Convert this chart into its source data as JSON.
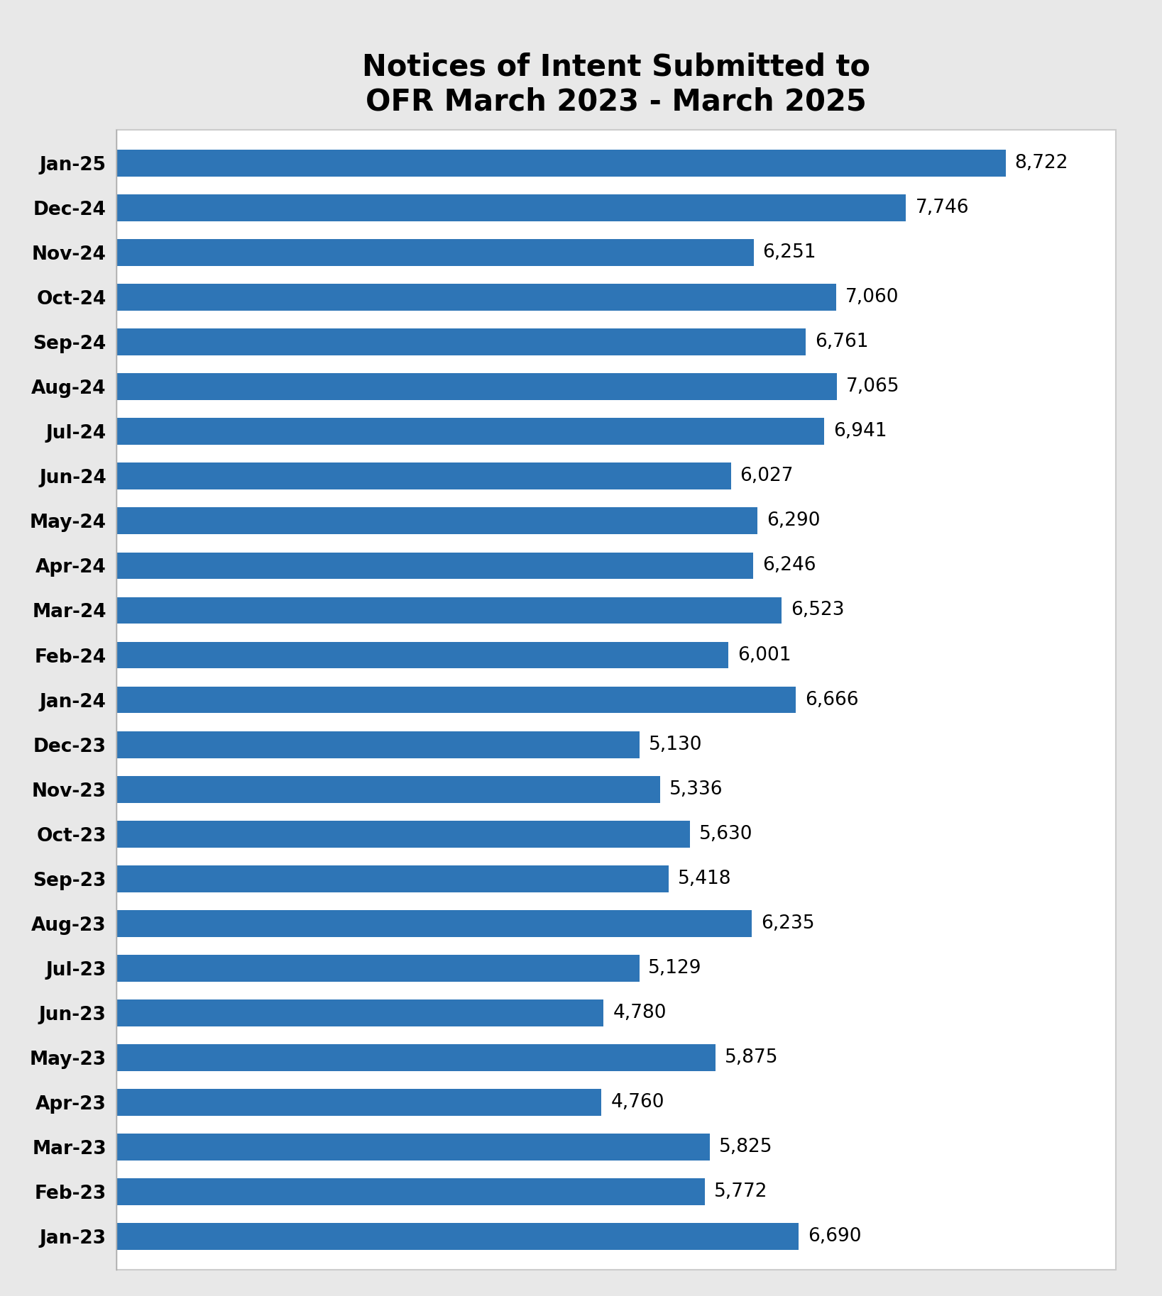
{
  "title": "Notices of Intent Submitted to\nOFR March 2023 - March 2025",
  "categories": [
    "Jan-25",
    "Dec-24",
    "Nov-24",
    "Oct-24",
    "Sep-24",
    "Aug-24",
    "Jul-24",
    "Jun-24",
    "May-24",
    "Apr-24",
    "Mar-24",
    "Feb-24",
    "Jan-24",
    "Dec-23",
    "Nov-23",
    "Oct-23",
    "Sep-23",
    "Aug-23",
    "Jul-23",
    "Jun-23",
    "May-23",
    "Apr-23",
    "Mar-23",
    "Feb-23",
    "Jan-23"
  ],
  "values": [
    8722,
    7746,
    6251,
    7060,
    6761,
    7065,
    6941,
    6027,
    6290,
    6246,
    6523,
    6001,
    6666,
    5130,
    5336,
    5630,
    5418,
    6235,
    5129,
    4780,
    5875,
    4760,
    5825,
    5772,
    6690
  ],
  "bar_color": "#2E75B6",
  "outer_background_color": "#e8e8e8",
  "inner_background_color": "#ffffff",
  "title_fontsize": 30,
  "label_fontsize": 19,
  "value_fontsize": 19,
  "xlim": [
    0,
    9800
  ],
  "bar_height": 0.6
}
